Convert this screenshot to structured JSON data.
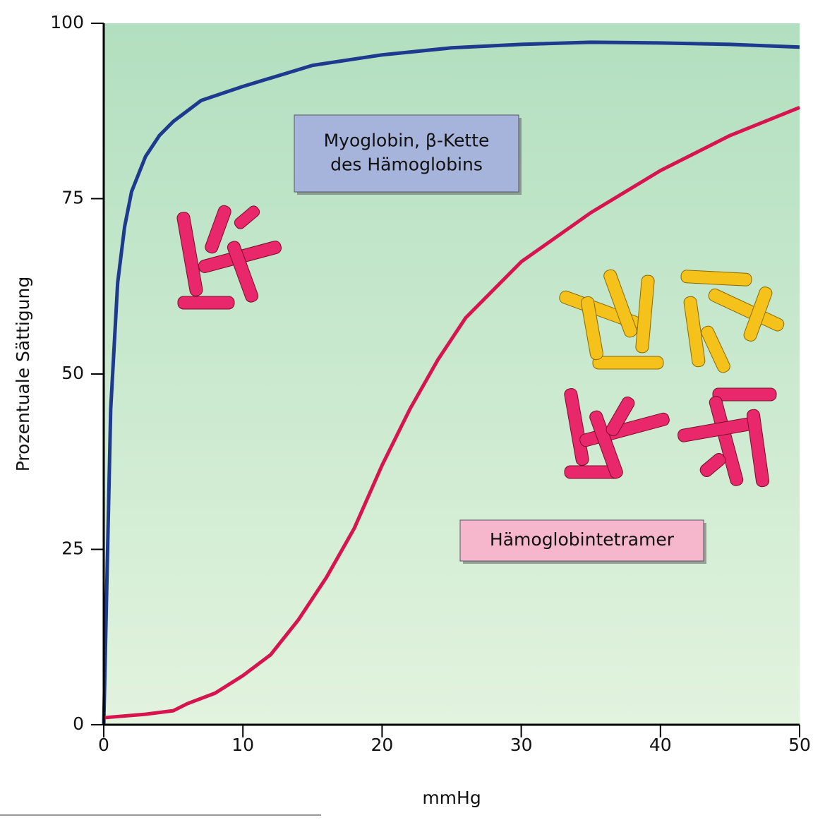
{
  "chart_data": {
    "type": "line",
    "xlabel": "mmHg",
    "ylabel": "Prozentuale Sättigung",
    "xlim": [
      0,
      50
    ],
    "xticks": [
      0,
      10,
      20,
      30,
      40,
      50
    ],
    "ylim": [
      0,
      100
    ],
    "yticks": [
      0,
      25,
      50,
      75,
      100
    ],
    "series": [
      {
        "color": "#1d3a8f",
        "x": [
          0,
          0.5,
          1,
          1.5,
          2,
          3,
          4,
          5,
          7,
          10,
          15,
          20,
          25,
          30,
          35,
          40,
          45,
          50
        ],
        "values": [
          0,
          45,
          63,
          71,
          76,
          81,
          84,
          86,
          89,
          91,
          94,
          95.5,
          96.5,
          97,
          97.3,
          97.2,
          97,
          96.6
        ]
      },
      {
        "color": "#d8144f",
        "x": [
          0,
          3,
          5,
          6,
          8,
          10,
          12,
          14,
          16,
          18,
          20,
          22,
          24,
          26,
          28,
          30,
          35,
          40,
          45,
          50
        ],
        "values": [
          1,
          1.5,
          2,
          3,
          4.5,
          7,
          10,
          15,
          21,
          28,
          37,
          45,
          52,
          58,
          62,
          66,
          73,
          79,
          84,
          88
        ]
      }
    ],
    "annotations": [
      {
        "lines": [
          "Myoglobin, β-Kette",
          "des Hämoglobins"
        ],
        "color": "#a6b4dc"
      },
      {
        "lines": [
          "Hämoglobintetramer"
        ],
        "color": "#f6b7cc"
      }
    ]
  }
}
